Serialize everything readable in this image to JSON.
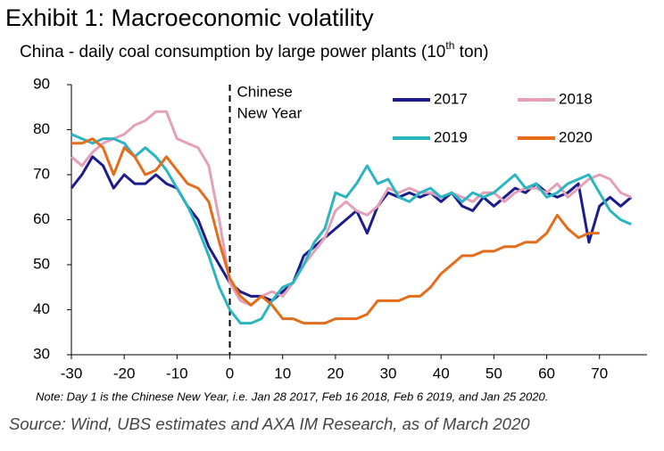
{
  "chart_data": {
    "type": "line",
    "title": "Exhibit 1: Macroeconomic volatility",
    "subtitle": [
      "China - daily coal consumption by large power plants (10",
      "th",
      " ton)"
    ],
    "annotation": {
      "x": 0,
      "lines": [
        "Chinese",
        "New Year"
      ]
    },
    "note": "Note: Day 1 is the Chinese New Year, i.e. Jan 28 2017, Feb 16 2018, Feb 6 2019, and Jan 25 2020.",
    "source": "Source: Wind, UBS estimates and AXA IM Research, as of March 2020",
    "x": [
      -30,
      -28,
      -26,
      -24,
      -22,
      -20,
      -18,
      -16,
      -14,
      -12,
      -10,
      -8,
      -6,
      -4,
      -2,
      0,
      2,
      4,
      6,
      8,
      10,
      12,
      14,
      16,
      18,
      20,
      22,
      24,
      26,
      28,
      30,
      32,
      34,
      36,
      38,
      40,
      42,
      44,
      46,
      48,
      50,
      52,
      54,
      56,
      58,
      60,
      62,
      64,
      66,
      68,
      70,
      72,
      74,
      76
    ],
    "series": [
      {
        "name": "2017",
        "color": "#1c1c8c",
        "values": [
          67,
          70,
          74,
          72,
          67,
          70,
          68,
          68,
          70,
          68,
          67,
          63,
          60,
          54,
          50,
          46,
          44,
          43,
          43,
          42,
          44,
          46,
          52,
          54,
          56,
          58,
          60,
          62,
          57,
          63,
          66,
          65,
          66,
          65,
          66,
          64,
          66,
          63,
          62,
          65,
          63,
          65,
          67,
          66,
          68,
          66,
          65,
          66,
          68,
          55,
          63,
          65,
          63,
          65
        ]
      },
      {
        "name": "2018",
        "color": "#e4a0b8",
        "values": [
          74,
          72,
          75,
          77,
          78,
          79,
          81,
          82,
          84,
          84,
          78,
          77,
          76,
          72,
          60,
          46,
          42,
          41,
          43,
          44,
          43,
          46,
          50,
          53,
          56,
          62,
          64,
          62,
          61,
          63,
          67,
          66,
          67,
          66,
          66,
          65,
          66,
          65,
          64,
          66,
          66,
          64,
          66,
          67,
          67,
          66,
          68,
          65,
          67,
          69,
          70,
          69,
          66,
          65
        ]
      },
      {
        "name": "2019",
        "color": "#2ab5c0",
        "values": [
          79,
          78,
          77,
          78,
          78,
          77,
          74,
          76,
          74,
          71,
          67,
          63,
          58,
          52,
          45,
          40,
          37,
          37,
          38,
          42,
          45,
          46,
          50,
          55,
          58,
          66,
          65,
          68,
          72,
          68,
          69,
          65,
          64,
          66,
          67,
          65,
          66,
          64,
          66,
          65,
          66,
          68,
          70,
          67,
          68,
          65,
          66,
          68,
          69,
          70,
          66,
          62,
          60,
          59
        ]
      },
      {
        "name": "2020",
        "color": "#e46c1a",
        "values": [
          77,
          77,
          78,
          76,
          70,
          76,
          74,
          70,
          71,
          74,
          71,
          68,
          67,
          64,
          55,
          47,
          43,
          41,
          43,
          41,
          38,
          38,
          37,
          37,
          37,
          38,
          38,
          38,
          39,
          42,
          42,
          42,
          43,
          43,
          45,
          48,
          50,
          52,
          52,
          53,
          53,
          54,
          54,
          55,
          55,
          57,
          61,
          58,
          56,
          57,
          57,
          null,
          null,
          null
        ]
      }
    ],
    "xlim": [
      -30,
      79
    ],
    "xticks": [
      -30,
      -20,
      -10,
      0,
      10,
      20,
      30,
      40,
      50,
      60,
      70
    ],
    "ylim": [
      30,
      90
    ],
    "yticks": [
      30,
      40,
      50,
      60,
      70,
      80,
      90
    ],
    "legend": "top-right",
    "grid": false
  }
}
